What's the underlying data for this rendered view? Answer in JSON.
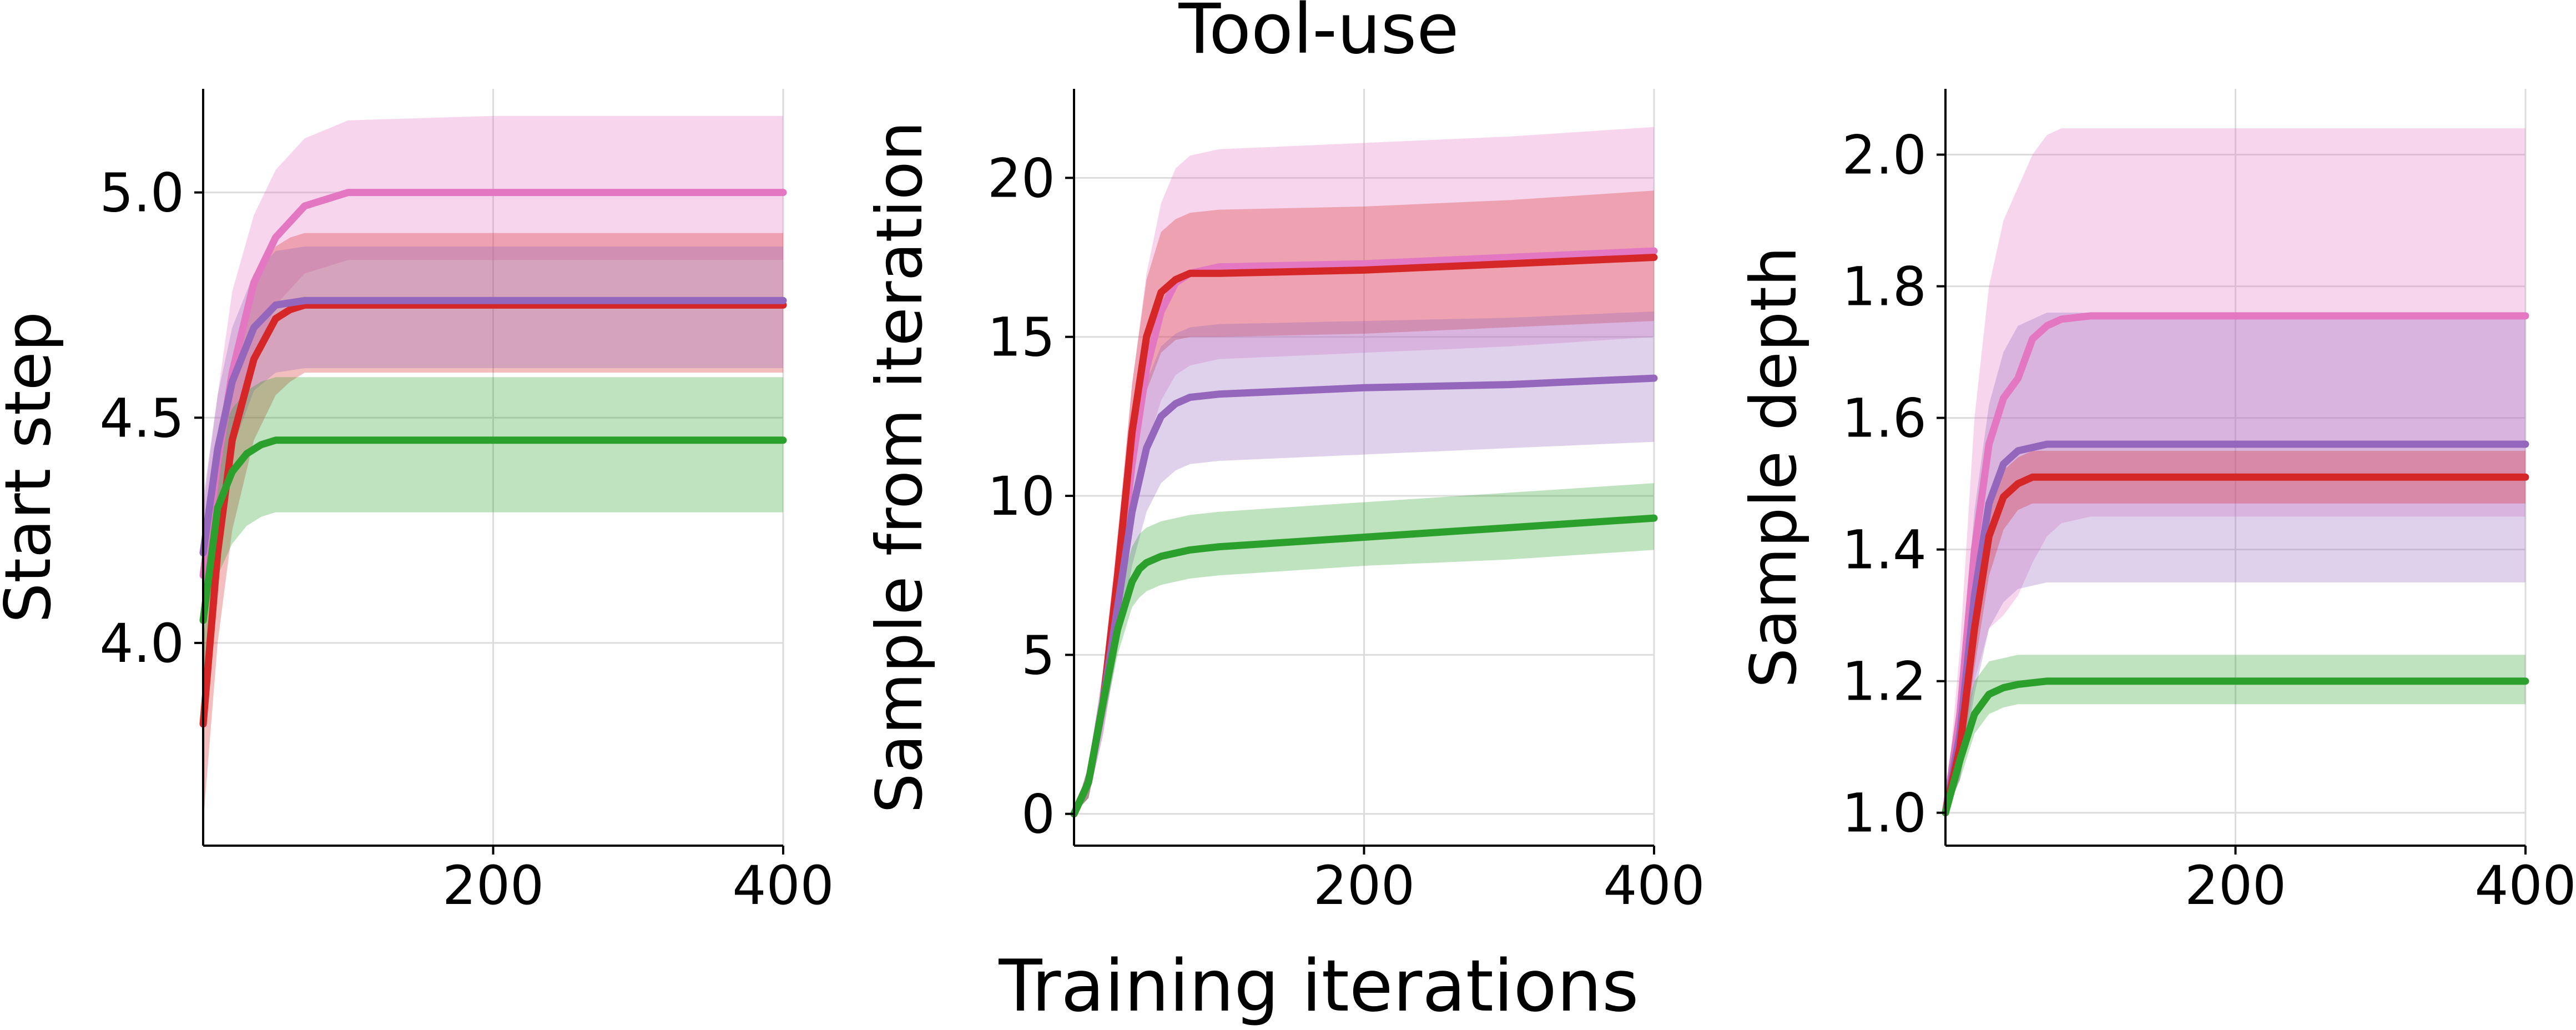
{
  "figure": {
    "title": "Tool-use",
    "xlabel": "Training iterations"
  },
  "colors": {
    "pink": "#e377c2",
    "red": "#d62728",
    "purple": "#9467bd",
    "green": "#2ca02c",
    "grid": "#dcdcdc",
    "axis": "#000000"
  },
  "chart_data": [
    {
      "type": "line",
      "title": "",
      "xlabel": "",
      "ylabel": "Start step",
      "xlim": [
        0,
        400
      ],
      "ylim": [
        3.55,
        5.23
      ],
      "xticks": [
        200,
        400
      ],
      "yticks": [
        4.0,
        4.5,
        5.0
      ],
      "ytick_labels": [
        "4.0",
        "4.5",
        "5.0"
      ],
      "grid": true,
      "series": [
        {
          "color": "pink",
          "x": [
            0,
            10,
            20,
            35,
            50,
            70,
            100,
            200,
            300,
            400
          ],
          "y": [
            4.15,
            4.4,
            4.6,
            4.8,
            4.9,
            4.97,
            5.0,
            5.0,
            5.0,
            5.0
          ],
          "lo": [
            4.05,
            4.2,
            4.42,
            4.62,
            4.75,
            4.82,
            4.85,
            4.85,
            4.85,
            4.85
          ],
          "hi": [
            4.3,
            4.55,
            4.78,
            4.95,
            5.05,
            5.12,
            5.16,
            5.17,
            5.17,
            5.17
          ]
        },
        {
          "color": "red",
          "x": [
            0,
            10,
            20,
            35,
            50,
            60,
            70,
            100,
            200,
            300,
            400
          ],
          "y": [
            3.82,
            4.2,
            4.45,
            4.63,
            4.72,
            4.74,
            4.75,
            4.75,
            4.75,
            4.75,
            4.75
          ],
          "lo": [
            3.6,
            4.0,
            4.25,
            4.45,
            4.55,
            4.58,
            4.6,
            4.6,
            4.6,
            4.6,
            4.6
          ],
          "hi": [
            4.0,
            4.35,
            4.6,
            4.8,
            4.88,
            4.9,
            4.91,
            4.91,
            4.91,
            4.91,
            4.91
          ]
        },
        {
          "color": "purple",
          "x": [
            0,
            10,
            20,
            35,
            50,
            70,
            100,
            200,
            300,
            400
          ],
          "y": [
            4.2,
            4.43,
            4.58,
            4.7,
            4.75,
            4.76,
            4.76,
            4.76,
            4.76,
            4.76
          ],
          "lo": [
            4.05,
            4.28,
            4.43,
            4.56,
            4.6,
            4.61,
            4.61,
            4.61,
            4.61,
            4.61
          ],
          "hi": [
            4.32,
            4.55,
            4.7,
            4.82,
            4.87,
            4.88,
            4.88,
            4.88,
            4.88,
            4.88
          ]
        },
        {
          "color": "green",
          "x": [
            0,
            10,
            20,
            30,
            40,
            50,
            70,
            100,
            200,
            300,
            400
          ],
          "y": [
            4.05,
            4.3,
            4.38,
            4.42,
            4.44,
            4.45,
            4.45,
            4.45,
            4.45,
            4.45,
            4.45
          ],
          "lo": [
            3.9,
            4.15,
            4.22,
            4.26,
            4.28,
            4.29,
            4.29,
            4.29,
            4.29,
            4.29,
            4.29
          ],
          "hi": [
            4.2,
            4.45,
            4.52,
            4.56,
            4.58,
            4.59,
            4.59,
            4.59,
            4.59,
            4.59,
            4.59
          ]
        }
      ]
    },
    {
      "type": "line",
      "title": "",
      "xlabel": "",
      "ylabel": "Sample from iteration",
      "xlim": [
        0,
        400
      ],
      "ylim": [
        -1,
        22.8
      ],
      "xticks": [
        200,
        400
      ],
      "yticks": [
        0,
        5,
        10,
        15,
        20
      ],
      "ytick_labels": [
        "0",
        "5",
        "10",
        "15",
        "20"
      ],
      "grid": true,
      "series": [
        {
          "color": "pink",
          "x": [
            0,
            10,
            20,
            30,
            40,
            50,
            60,
            70,
            80,
            100,
            200,
            300,
            400
          ],
          "y": [
            0,
            1.0,
            3.5,
            7.0,
            11.0,
            14.0,
            15.8,
            16.7,
            17.0,
            17.2,
            17.3,
            17.5,
            17.7
          ],
          "lo": [
            0,
            0.5,
            2.5,
            5.5,
            9.0,
            11.5,
            13.0,
            13.8,
            14.1,
            14.3,
            14.5,
            14.7,
            15.0
          ],
          "hi": [
            0,
            1.5,
            4.5,
            8.8,
            13.5,
            17.0,
            19.2,
            20.3,
            20.7,
            20.9,
            21.1,
            21.3,
            21.6
          ]
        },
        {
          "color": "red",
          "x": [
            0,
            10,
            20,
            30,
            40,
            50,
            60,
            70,
            80,
            100,
            200,
            300,
            400
          ],
          "y": [
            0,
            1.0,
            3.5,
            7.5,
            12.0,
            15.0,
            16.4,
            16.8,
            17.0,
            17.0,
            17.1,
            17.3,
            17.5
          ],
          "lo": [
            0,
            0.5,
            2.8,
            6.5,
            10.5,
            13.3,
            14.5,
            14.9,
            15.0,
            15.0,
            15.1,
            15.3,
            15.5
          ],
          "hi": [
            0,
            1.5,
            4.2,
            8.5,
            13.5,
            16.8,
            18.3,
            18.7,
            18.9,
            19.0,
            19.1,
            19.3,
            19.6
          ]
        },
        {
          "color": "purple",
          "x": [
            0,
            10,
            20,
            30,
            40,
            50,
            60,
            70,
            80,
            100,
            200,
            300,
            400
          ],
          "y": [
            0,
            1.0,
            3.5,
            6.5,
            9.5,
            11.5,
            12.5,
            12.9,
            13.1,
            13.2,
            13.4,
            13.5,
            13.7
          ],
          "lo": [
            0,
            0.5,
            2.5,
            5.2,
            7.8,
            9.5,
            10.4,
            10.8,
            11.0,
            11.1,
            11.3,
            11.5,
            11.7
          ],
          "hi": [
            0,
            1.5,
            4.5,
            7.8,
            11.2,
            13.6,
            14.7,
            15.1,
            15.3,
            15.4,
            15.5,
            15.6,
            15.8
          ]
        },
        {
          "color": "green",
          "x": [
            0,
            10,
            20,
            30,
            40,
            45,
            50,
            60,
            80,
            100,
            200,
            300,
            400
          ],
          "y": [
            0,
            1.0,
            3.5,
            5.8,
            7.3,
            7.7,
            7.9,
            8.1,
            8.3,
            8.4,
            8.7,
            9.0,
            9.3
          ],
          "lo": [
            0,
            0.5,
            2.8,
            5.0,
            6.5,
            6.8,
            7.0,
            7.2,
            7.4,
            7.5,
            7.8,
            8.0,
            8.3
          ],
          "hi": [
            0,
            1.5,
            4.2,
            6.8,
            8.4,
            8.8,
            9.0,
            9.2,
            9.4,
            9.5,
            9.8,
            10.1,
            10.4
          ]
        }
      ]
    },
    {
      "type": "line",
      "title": "",
      "xlabel": "",
      "ylabel": "Sample depth",
      "xlim": [
        0,
        400
      ],
      "ylim": [
        0.95,
        2.1
      ],
      "xticks": [
        200,
        400
      ],
      "yticks": [
        1.0,
        1.2,
        1.4,
        1.6,
        1.8,
        2.0
      ],
      "ytick_labels": [
        "1.0",
        "1.2",
        "1.4",
        "1.6",
        "1.8",
        "2.0"
      ],
      "grid": true,
      "series": [
        {
          "color": "pink",
          "x": [
            0,
            10,
            20,
            30,
            40,
            50,
            60,
            70,
            80,
            100,
            200,
            300,
            400
          ],
          "y": [
            1.0,
            1.15,
            1.4,
            1.56,
            1.63,
            1.66,
            1.72,
            1.74,
            1.75,
            1.755,
            1.755,
            1.755,
            1.755
          ],
          "lo": [
            1.0,
            1.05,
            1.2,
            1.28,
            1.3,
            1.33,
            1.38,
            1.42,
            1.44,
            1.45,
            1.45,
            1.45,
            1.45
          ],
          "hi": [
            1.0,
            1.25,
            1.6,
            1.8,
            1.9,
            1.95,
            2.0,
            2.03,
            2.04,
            2.04,
            2.04,
            2.04,
            2.04
          ]
        },
        {
          "color": "purple",
          "x": [
            0,
            10,
            20,
            30,
            40,
            50,
            70,
            100,
            200,
            300,
            400
          ],
          "y": [
            1.0,
            1.12,
            1.33,
            1.47,
            1.53,
            1.55,
            1.56,
            1.56,
            1.56,
            1.56,
            1.56
          ],
          "lo": [
            1.0,
            1.05,
            1.18,
            1.28,
            1.32,
            1.34,
            1.35,
            1.35,
            1.35,
            1.35,
            1.35
          ],
          "hi": [
            1.0,
            1.2,
            1.46,
            1.62,
            1.7,
            1.74,
            1.76,
            1.76,
            1.76,
            1.76,
            1.76
          ]
        },
        {
          "color": "red",
          "x": [
            0,
            10,
            20,
            30,
            40,
            50,
            60,
            70,
            100,
            200,
            300,
            400
          ],
          "y": [
            1.0,
            1.1,
            1.28,
            1.42,
            1.48,
            1.5,
            1.51,
            1.51,
            1.51,
            1.51,
            1.51,
            1.51
          ],
          "lo": [
            1.0,
            1.06,
            1.22,
            1.36,
            1.43,
            1.46,
            1.47,
            1.47,
            1.47,
            1.47,
            1.47,
            1.47
          ],
          "hi": [
            1.0,
            1.14,
            1.33,
            1.47,
            1.52,
            1.54,
            1.55,
            1.55,
            1.55,
            1.55,
            1.55,
            1.55
          ]
        },
        {
          "color": "green",
          "x": [
            0,
            10,
            20,
            30,
            40,
            50,
            70,
            100,
            200,
            300,
            400
          ],
          "y": [
            1.0,
            1.08,
            1.15,
            1.18,
            1.19,
            1.195,
            1.2,
            1.2,
            1.2,
            1.2,
            1.2
          ],
          "lo": [
            1.0,
            1.05,
            1.12,
            1.15,
            1.16,
            1.165,
            1.165,
            1.165,
            1.165,
            1.165,
            1.165
          ],
          "hi": [
            1.0,
            1.12,
            1.2,
            1.23,
            1.235,
            1.24,
            1.24,
            1.24,
            1.24,
            1.24,
            1.24
          ]
        }
      ]
    }
  ]
}
